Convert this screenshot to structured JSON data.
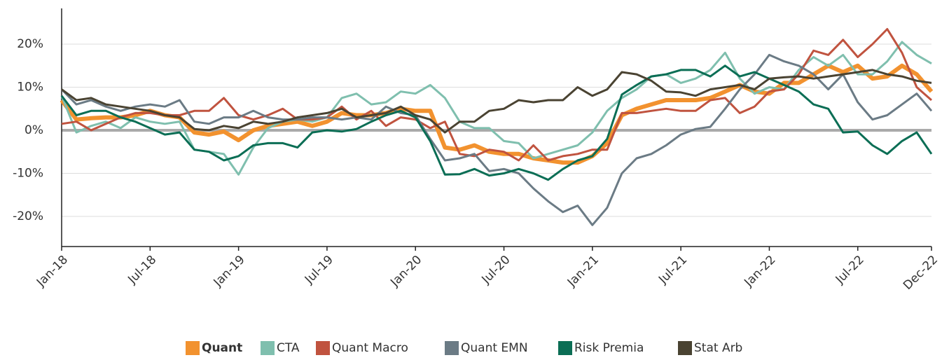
{
  "chart_data": {
    "type": "line",
    "categories": [
      "Jan-18",
      null,
      null,
      null,
      null,
      null,
      "Jul-18",
      null,
      null,
      null,
      null,
      null,
      "Jan-19",
      null,
      null,
      null,
      null,
      null,
      "Jul-19",
      null,
      null,
      null,
      null,
      null,
      "Jan-20",
      null,
      null,
      null,
      null,
      null,
      "Jul-20",
      null,
      null,
      null,
      null,
      null,
      "Jan-21",
      null,
      null,
      null,
      null,
      null,
      "Jul-21",
      null,
      null,
      null,
      null,
      null,
      "Jan-22",
      null,
      null,
      null,
      null,
      null,
      "Jul-22",
      null,
      null,
      null,
      null,
      "Dec-22"
    ],
    "series": [
      {
        "name": "Quant",
        "color": "#f2922f",
        "values": [
          7,
          2.5,
          2.8,
          3,
          3,
          3.5,
          4.5,
          3.5,
          3,
          -0.5,
          -1,
          -0.3,
          -2.3,
          0,
          1,
          1.5,
          2,
          1,
          2,
          4,
          3.5,
          3.5,
          4,
          5,
          4.5,
          4.5,
          -4,
          -4.5,
          -3.5,
          -5,
          -5.5,
          -5.5,
          -6.5,
          -7,
          -7.5,
          -7.5,
          -6,
          -3,
          3.5,
          5,
          6,
          7,
          7,
          7,
          7.5,
          9,
          10.5,
          9,
          8.5,
          11,
          11,
          13,
          15,
          13.5,
          15,
          12,
          12.5,
          15,
          13,
          9
        ]
      },
      {
        "name": "CTA",
        "color": "#7fbfae",
        "values": [
          8,
          -0.5,
          1,
          2,
          0.5,
          3,
          2,
          1.5,
          2,
          -4.5,
          -5,
          -5.5,
          -10.3,
          -4,
          0.5,
          2,
          2.5,
          2,
          3,
          7.5,
          8.5,
          6,
          6.5,
          9,
          8.5,
          10.5,
          7.5,
          2,
          0.5,
          0.5,
          -2.5,
          -3,
          -6.5,
          -5.5,
          -4.5,
          -3.5,
          -0.5,
          4.5,
          7.5,
          9.5,
          12.5,
          13,
          11,
          12,
          14,
          18,
          12,
          8.5,
          10,
          9.5,
          14,
          17,
          15,
          17.5,
          13,
          13,
          16,
          20.5,
          17.5,
          15.5
        ]
      },
      {
        "name": "Quant Macro",
        "color": "#c0533f",
        "values": [
          1.5,
          2,
          0,
          1.5,
          3,
          4,
          4,
          3.5,
          3.5,
          4.5,
          4.5,
          7.5,
          3.5,
          2.5,
          3.5,
          5,
          2.5,
          2.5,
          3,
          5.5,
          2.5,
          4.5,
          1,
          3,
          2.5,
          0.5,
          2,
          -5.5,
          -6,
          -4.5,
          -5,
          -7,
          -3.5,
          -7,
          -6,
          -5.5,
          -4.5,
          -4.5,
          4,
          4,
          4.5,
          5,
          4.5,
          4.5,
          7,
          7.5,
          4,
          5.5,
          9,
          9.5,
          13,
          18.5,
          17.5,
          21,
          17,
          20,
          23.5,
          18,
          10,
          7
        ]
      },
      {
        "name": "Quant EMN",
        "color": "#6b7b85",
        "values": [
          9.5,
          6,
          7,
          5.5,
          4.5,
          5.5,
          6,
          5.5,
          7,
          2,
          1.5,
          3,
          3,
          4.5,
          3,
          2.5,
          2.5,
          3,
          3,
          2.5,
          3,
          2.5,
          5.5,
          4,
          3.5,
          -2,
          -7,
          -6.5,
          -5.5,
          -9.5,
          -9,
          -10,
          -13.5,
          -16.5,
          -19,
          -17.5,
          -22,
          -18,
          -10,
          -6.5,
          -5.5,
          -3.5,
          -1,
          0.3,
          0.8,
          5,
          9.5,
          13,
          17.5,
          16,
          15,
          13,
          9.5,
          13,
          6.5,
          2.5,
          3.5,
          6,
          8.5,
          4.5
        ]
      },
      {
        "name": "Risk Premia",
        "color": "#0b6e55",
        "values": [
          8,
          3.5,
          4.5,
          4.5,
          3,
          2,
          0.5,
          -1,
          -0.5,
          -4.5,
          -5,
          -7,
          -6,
          -3.5,
          -3,
          -3,
          -4,
          -0.5,
          0,
          -0.3,
          0.3,
          2,
          3.5,
          4.5,
          3,
          -2.5,
          -10.3,
          -10.2,
          -9,
          -10.5,
          -10,
          -9,
          -10,
          -11.5,
          -9,
          -7,
          -6,
          -2,
          8.3,
          10.5,
          12.5,
          13,
          14,
          14,
          12.5,
          15,
          12.5,
          13.5,
          12,
          10.5,
          9,
          6,
          5,
          -0.5,
          -0.3,
          -3.5,
          -5.5,
          -2.5,
          -0.5,
          -5.5
        ]
      },
      {
        "name": "Stat Arb",
        "color": "#4a4332",
        "values": [
          9.5,
          7,
          7.5,
          6,
          5.5,
          5,
          4.5,
          3.5,
          3,
          0.3,
          0,
          1,
          0.5,
          2,
          1.5,
          2,
          3,
          3.5,
          4,
          5,
          3,
          3.5,
          4,
          5.5,
          3.5,
          2.5,
          -0.5,
          2,
          2,
          4.5,
          5,
          7,
          6.5,
          7,
          7,
          10,
          8,
          9.5,
          13.5,
          13,
          11.5,
          9,
          8.8,
          8,
          9.5,
          10,
          10.5,
          9.5,
          12,
          12.3,
          12.5,
          12,
          12.5,
          13,
          13.5,
          14,
          13,
          12.5,
          11.5,
          11
        ]
      }
    ],
    "ylim": [
      -27,
      28.3
    ],
    "yticks": [
      {
        "value": -20,
        "label": "-20%"
      },
      {
        "value": -10,
        "label": "-10%"
      },
      {
        "value": 0,
        "label": "0%"
      },
      {
        "value": 10,
        "label": "10%"
      },
      {
        "value": 20,
        "label": "20%"
      }
    ],
    "grid": true
  }
}
